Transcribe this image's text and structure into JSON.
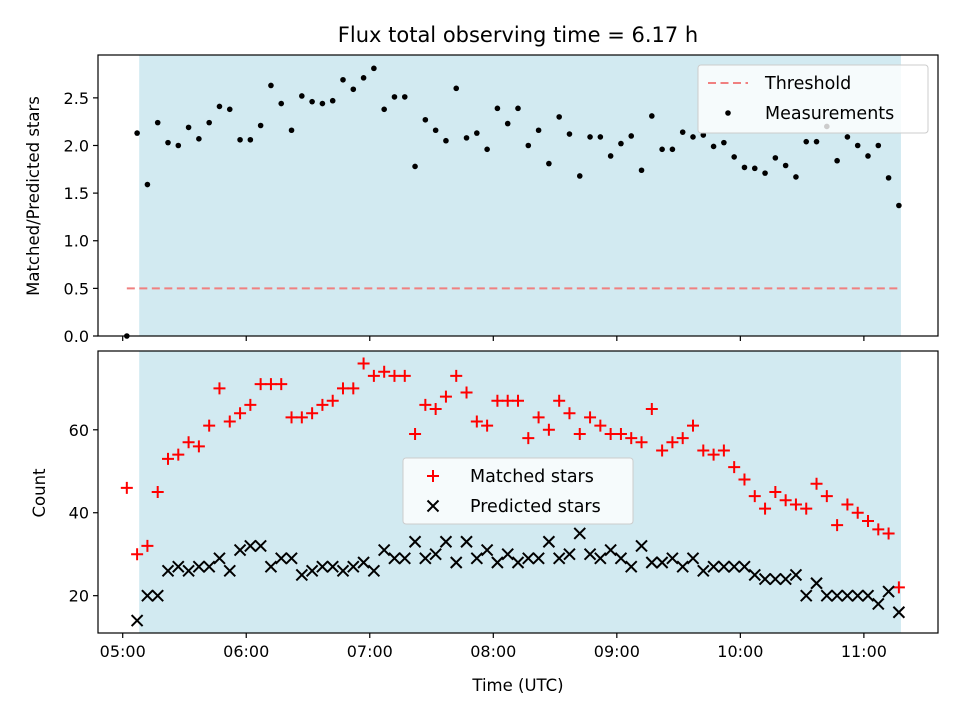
{
  "chart_data": [
    {
      "type": "scatter",
      "title": "Flux total observing time = 6.17 h",
      "xlabel": "",
      "ylabel": "Matched/Predicted stars",
      "ylim": [
        0,
        2.95
      ],
      "yticks": [
        0.0,
        0.5,
        1.0,
        1.5,
        2.0,
        2.5
      ],
      "ytick_labels": [
        "0.0",
        "0.5",
        "1.0",
        "1.5",
        "2.0",
        "2.5"
      ],
      "xlim": [
        "04:48",
        "11:36"
      ],
      "xticks": [
        "05:00",
        "06:00",
        "07:00",
        "08:00",
        "09:00",
        "10:00",
        "11:00"
      ],
      "xtick_labels_visible": false,
      "shaded_span": [
        "05:08",
        "11:18"
      ],
      "shade_color": "#add8e6",
      "legend_position": "top-right",
      "threshold": {
        "name": "Threshold",
        "value": 0.5,
        "x_start": "05:02",
        "x_end": "11:17",
        "color": "#f08080",
        "style": "dashed"
      },
      "series": [
        {
          "name": "Measurements",
          "color": "#000000",
          "marker": "dot",
          "points": [
            [
              "05:02",
              0.0
            ],
            [
              "05:07",
              2.13
            ],
            [
              "05:12",
              1.59
            ],
            [
              "05:17",
              2.24
            ],
            [
              "05:22",
              2.03
            ],
            [
              "05:27",
              2.0
            ],
            [
              "05:32",
              2.19
            ],
            [
              "05:37",
              2.07
            ],
            [
              "05:42",
              2.24
            ],
            [
              "05:47",
              2.41
            ],
            [
              "05:52",
              2.38
            ],
            [
              "05:57",
              2.06
            ],
            [
              "06:02",
              2.06
            ],
            [
              "06:07",
              2.21
            ],
            [
              "06:12",
              2.63
            ],
            [
              "06:17",
              2.44
            ],
            [
              "06:22",
              2.16
            ],
            [
              "06:27",
              2.52
            ],
            [
              "06:32",
              2.46
            ],
            [
              "06:37",
              2.44
            ],
            [
              "06:42",
              2.47
            ],
            [
              "06:47",
              2.69
            ],
            [
              "06:52",
              2.59
            ],
            [
              "06:57",
              2.71
            ],
            [
              "07:02",
              2.81
            ],
            [
              "07:07",
              2.38
            ],
            [
              "07:12",
              2.51
            ],
            [
              "07:17",
              2.51
            ],
            [
              "07:22",
              1.78
            ],
            [
              "07:27",
              2.27
            ],
            [
              "07:32",
              2.16
            ],
            [
              "07:37",
              2.05
            ],
            [
              "07:42",
              2.6
            ],
            [
              "07:47",
              2.08
            ],
            [
              "07:52",
              2.13
            ],
            [
              "07:57",
              1.96
            ],
            [
              "08:02",
              2.39
            ],
            [
              "08:07",
              2.23
            ],
            [
              "08:12",
              2.39
            ],
            [
              "08:17",
              2.0
            ],
            [
              "08:22",
              2.16
            ],
            [
              "08:27",
              1.81
            ],
            [
              "08:32",
              2.3
            ],
            [
              "08:37",
              2.12
            ],
            [
              "08:42",
              1.68
            ],
            [
              "08:47",
              2.09
            ],
            [
              "08:52",
              2.09
            ],
            [
              "08:57",
              1.89
            ],
            [
              "09:02",
              2.02
            ],
            [
              "09:07",
              2.1
            ],
            [
              "09:12",
              1.74
            ],
            [
              "09:17",
              2.31
            ],
            [
              "09:22",
              1.96
            ],
            [
              "09:27",
              1.96
            ],
            [
              "09:32",
              2.14
            ],
            [
              "09:37",
              2.09
            ],
            [
              "09:42",
              2.11
            ],
            [
              "09:47",
              1.99
            ],
            [
              "09:52",
              2.03
            ],
            [
              "09:57",
              1.88
            ],
            [
              "10:02",
              1.77
            ],
            [
              "10:07",
              1.76
            ],
            [
              "10:12",
              1.71
            ],
            [
              "10:17",
              1.87
            ],
            [
              "10:22",
              1.79
            ],
            [
              "10:27",
              1.67
            ],
            [
              "10:32",
              2.04
            ],
            [
              "10:37",
              2.04
            ],
            [
              "10:42",
              2.2
            ],
            [
              "10:47",
              1.84
            ],
            [
              "10:52",
              2.09
            ],
            [
              "10:57",
              2.0
            ],
            [
              "11:02",
              1.89
            ],
            [
              "11:07",
              2.0
            ],
            [
              "11:12",
              1.66
            ],
            [
              "11:17",
              1.37
            ]
          ]
        }
      ]
    },
    {
      "type": "scatter",
      "title": "",
      "xlabel": "Time (UTC)",
      "ylabel": "Count",
      "ylim": [
        11,
        79
      ],
      "yticks": [
        20,
        40,
        60
      ],
      "ytick_labels": [
        "20",
        "40",
        "60"
      ],
      "xlim": [
        "04:48",
        "11:36"
      ],
      "xticks": [
        "05:00",
        "06:00",
        "07:00",
        "08:00",
        "09:00",
        "10:00",
        "11:00"
      ],
      "xtick_labels": [
        "05:00",
        "06:00",
        "07:00",
        "08:00",
        "09:00",
        "10:00",
        "11:00"
      ],
      "shaded_span": [
        "05:08",
        "11:18"
      ],
      "shade_color": "#add8e6",
      "legend_position": "center",
      "series": [
        {
          "name": "Matched stars",
          "color": "#ff0000",
          "marker": "plus",
          "points": [
            [
              "05:02",
              46
            ],
            [
              "05:07",
              30
            ],
            [
              "05:12",
              32
            ],
            [
              "05:17",
              45
            ],
            [
              "05:22",
              53
            ],
            [
              "05:27",
              54
            ],
            [
              "05:32",
              57
            ],
            [
              "05:37",
              56
            ],
            [
              "05:42",
              61
            ],
            [
              "05:47",
              70
            ],
            [
              "05:52",
              62
            ],
            [
              "05:57",
              64
            ],
            [
              "06:02",
              66
            ],
            [
              "06:07",
              71
            ],
            [
              "06:12",
              71
            ],
            [
              "06:17",
              71
            ],
            [
              "06:22",
              63
            ],
            [
              "06:27",
              63
            ],
            [
              "06:32",
              64
            ],
            [
              "06:37",
              66
            ],
            [
              "06:42",
              67
            ],
            [
              "06:47",
              70
            ],
            [
              "06:52",
              70
            ],
            [
              "06:57",
              76
            ],
            [
              "07:02",
              73
            ],
            [
              "07:07",
              74
            ],
            [
              "07:12",
              73
            ],
            [
              "07:17",
              73
            ],
            [
              "07:22",
              59
            ],
            [
              "07:27",
              66
            ],
            [
              "07:32",
              65
            ],
            [
              "07:37",
              68
            ],
            [
              "07:42",
              73
            ],
            [
              "07:47",
              69
            ],
            [
              "07:52",
              62
            ],
            [
              "07:57",
              61
            ],
            [
              "08:02",
              67
            ],
            [
              "08:07",
              67
            ],
            [
              "08:12",
              67
            ],
            [
              "08:17",
              58
            ],
            [
              "08:22",
              63
            ],
            [
              "08:27",
              60
            ],
            [
              "08:32",
              67
            ],
            [
              "08:37",
              64
            ],
            [
              "08:42",
              59
            ],
            [
              "08:47",
              63
            ],
            [
              "08:52",
              61
            ],
            [
              "08:57",
              59
            ],
            [
              "09:02",
              59
            ],
            [
              "09:07",
              58
            ],
            [
              "09:12",
              57
            ],
            [
              "09:17",
              65
            ],
            [
              "09:22",
              55
            ],
            [
              "09:27",
              57
            ],
            [
              "09:32",
              58
            ],
            [
              "09:37",
              61
            ],
            [
              "09:42",
              55
            ],
            [
              "09:47",
              54
            ],
            [
              "09:52",
              55
            ],
            [
              "09:57",
              51
            ],
            [
              "10:02",
              48
            ],
            [
              "10:07",
              44
            ],
            [
              "10:12",
              41
            ],
            [
              "10:17",
              45
            ],
            [
              "10:22",
              43
            ],
            [
              "10:27",
              42
            ],
            [
              "10:32",
              41
            ],
            [
              "10:37",
              47
            ],
            [
              "10:42",
              44
            ],
            [
              "10:47",
              37
            ],
            [
              "10:52",
              42
            ],
            [
              "10:57",
              40
            ],
            [
              "11:02",
              38
            ],
            [
              "11:07",
              36
            ],
            [
              "11:12",
              35
            ],
            [
              "11:17",
              22
            ]
          ]
        },
        {
          "name": "Predicted stars",
          "color": "#000000",
          "marker": "x",
          "points": [
            [
              "05:07",
              14
            ],
            [
              "05:12",
              20
            ],
            [
              "05:17",
              20
            ],
            [
              "05:22",
              26
            ],
            [
              "05:27",
              27
            ],
            [
              "05:32",
              26
            ],
            [
              "05:37",
              27
            ],
            [
              "05:42",
              27
            ],
            [
              "05:47",
              29
            ],
            [
              "05:52",
              26
            ],
            [
              "05:57",
              31
            ],
            [
              "06:02",
              32
            ],
            [
              "06:07",
              32
            ],
            [
              "06:12",
              27
            ],
            [
              "06:17",
              29
            ],
            [
              "06:22",
              29
            ],
            [
              "06:27",
              25
            ],
            [
              "06:32",
              26
            ],
            [
              "06:37",
              27
            ],
            [
              "06:42",
              27
            ],
            [
              "06:47",
              26
            ],
            [
              "06:52",
              27
            ],
            [
              "06:57",
              28
            ],
            [
              "07:02",
              26
            ],
            [
              "07:07",
              31
            ],
            [
              "07:12",
              29
            ],
            [
              "07:17",
              29
            ],
            [
              "07:22",
              33
            ],
            [
              "07:27",
              29
            ],
            [
              "07:32",
              30
            ],
            [
              "07:37",
              33
            ],
            [
              "07:42",
              28
            ],
            [
              "07:47",
              33
            ],
            [
              "07:52",
              29
            ],
            [
              "07:57",
              31
            ],
            [
              "08:02",
              28
            ],
            [
              "08:07",
              30
            ],
            [
              "08:12",
              28
            ],
            [
              "08:17",
              29
            ],
            [
              "08:22",
              29
            ],
            [
              "08:27",
              33
            ],
            [
              "08:32",
              29
            ],
            [
              "08:37",
              30
            ],
            [
              "08:42",
              35
            ],
            [
              "08:47",
              30
            ],
            [
              "08:52",
              29
            ],
            [
              "08:57",
              31
            ],
            [
              "09:02",
              29
            ],
            [
              "09:07",
              27
            ],
            [
              "09:12",
              32
            ],
            [
              "09:17",
              28
            ],
            [
              "09:22",
              28
            ],
            [
              "09:27",
              29
            ],
            [
              "09:32",
              27
            ],
            [
              "09:37",
              29
            ],
            [
              "09:42",
              26
            ],
            [
              "09:47",
              27
            ],
            [
              "09:52",
              27
            ],
            [
              "09:57",
              27
            ],
            [
              "10:02",
              27
            ],
            [
              "10:07",
              25
            ],
            [
              "10:12",
              24
            ],
            [
              "10:17",
              24
            ],
            [
              "10:22",
              24
            ],
            [
              "10:27",
              25
            ],
            [
              "10:32",
              20
            ],
            [
              "10:37",
              23
            ],
            [
              "10:42",
              20
            ],
            [
              "10:47",
              20
            ],
            [
              "10:52",
              20
            ],
            [
              "10:57",
              20
            ],
            [
              "11:02",
              20
            ],
            [
              "11:07",
              18
            ],
            [
              "11:12",
              21
            ],
            [
              "11:17",
              16
            ]
          ]
        }
      ]
    }
  ]
}
